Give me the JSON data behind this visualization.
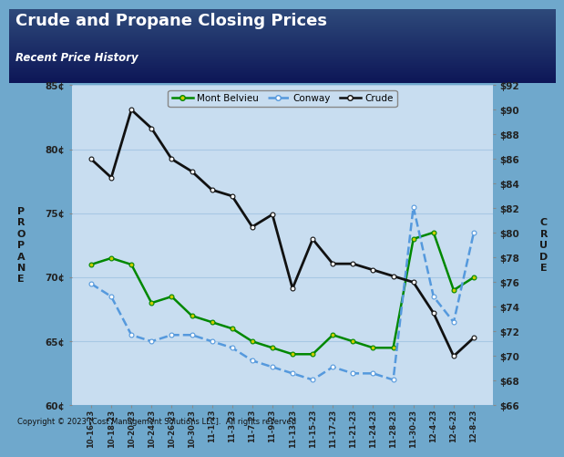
{
  "title": "Crude and Propane Closing Prices",
  "subtitle": "Recent Price History",
  "copyright": "Copyright © 2023 [Cost Management Solutions LLC].  All rights reserved",
  "x_labels": [
    "10-16-23",
    "10-18-23",
    "10-20-23",
    "10-24-23",
    "10-26-23",
    "10-30-23",
    "11-1-23",
    "11-3-23",
    "11-7-23",
    "11-9-23",
    "11-13-23",
    "11-15-23",
    "11-17-23",
    "11-21-23",
    "11-24-23",
    "11-28-23",
    "11-30-23",
    "12-4-23",
    "12-6-23",
    "12-8-23"
  ],
  "mont_belvieu": [
    71.0,
    71.5,
    71.0,
    68.0,
    68.5,
    67.0,
    66.5,
    66.0,
    65.0,
    64.5,
    64.0,
    64.0,
    65.5,
    65.0,
    64.5,
    64.5,
    73.0,
    73.5,
    69.0,
    70.0
  ],
  "conway": [
    69.5,
    68.5,
    65.5,
    65.0,
    65.5,
    65.5,
    65.0,
    64.5,
    63.5,
    63.0,
    62.5,
    62.0,
    63.0,
    62.5,
    62.5,
    62.0,
    75.5,
    68.5,
    66.5,
    73.5
  ],
  "crude": [
    86.0,
    84.5,
    90.0,
    88.5,
    86.0,
    85.0,
    83.5,
    83.0,
    80.5,
    81.5,
    75.5,
    79.5,
    77.5,
    77.5,
    77.0,
    76.5,
    76.0,
    73.5,
    70.0,
    71.5
  ],
  "propane_min": 60,
  "propane_max": 85,
  "crude_min": 66,
  "crude_max": 92,
  "propane_ticks": [
    60,
    65,
    70,
    75,
    80,
    85
  ],
  "crude_ticks": [
    66,
    68,
    70,
    72,
    74,
    76,
    78,
    80,
    82,
    84,
    86,
    88,
    90,
    92
  ],
  "header_bg_dark": "#0d1657",
  "header_bg_light": "#2d4a7a",
  "plot_bg": "#c8ddf0",
  "outer_bg": "#6fa8cc",
  "title_color": "#ffffff",
  "subtitle_color": "#ffffff",
  "grid_color": "#a8c8e4",
  "mont_belvieu_color": "#008800",
  "conway_color": "#5599dd",
  "crude_color": "#111111",
  "marker_color_mb": "#cccc00",
  "legend_bg": "#c8ddf0"
}
